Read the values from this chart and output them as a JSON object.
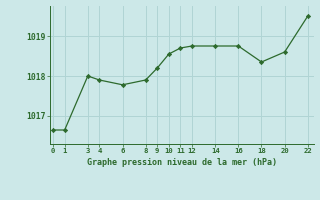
{
  "x": [
    0,
    1,
    3,
    4,
    6,
    8,
    9,
    10,
    11,
    12,
    14,
    16,
    18,
    20,
    22
  ],
  "y": [
    1016.65,
    1016.65,
    1018.0,
    1017.9,
    1017.78,
    1017.9,
    1018.2,
    1018.55,
    1018.7,
    1018.75,
    1018.75,
    1018.75,
    1018.35,
    1018.6,
    1019.5
  ],
  "line_color": "#2d6a2d",
  "marker_color": "#2d6a2d",
  "bg_color": "#cce8e8",
  "grid_color": "#b0d4d4",
  "xlabel": "Graphe pression niveau de la mer (hPa)",
  "xlabel_color": "#2d6a2d",
  "tick_color": "#2d6a2d",
  "spine_color": "#2d6a2d",
  "yticks": [
    1017,
    1018,
    1019
  ],
  "xticks": [
    0,
    1,
    3,
    4,
    6,
    8,
    9,
    10,
    11,
    12,
    14,
    16,
    18,
    20,
    22
  ],
  "ylim": [
    1016.3,
    1019.75
  ],
  "xlim": [
    -0.3,
    22.5
  ]
}
